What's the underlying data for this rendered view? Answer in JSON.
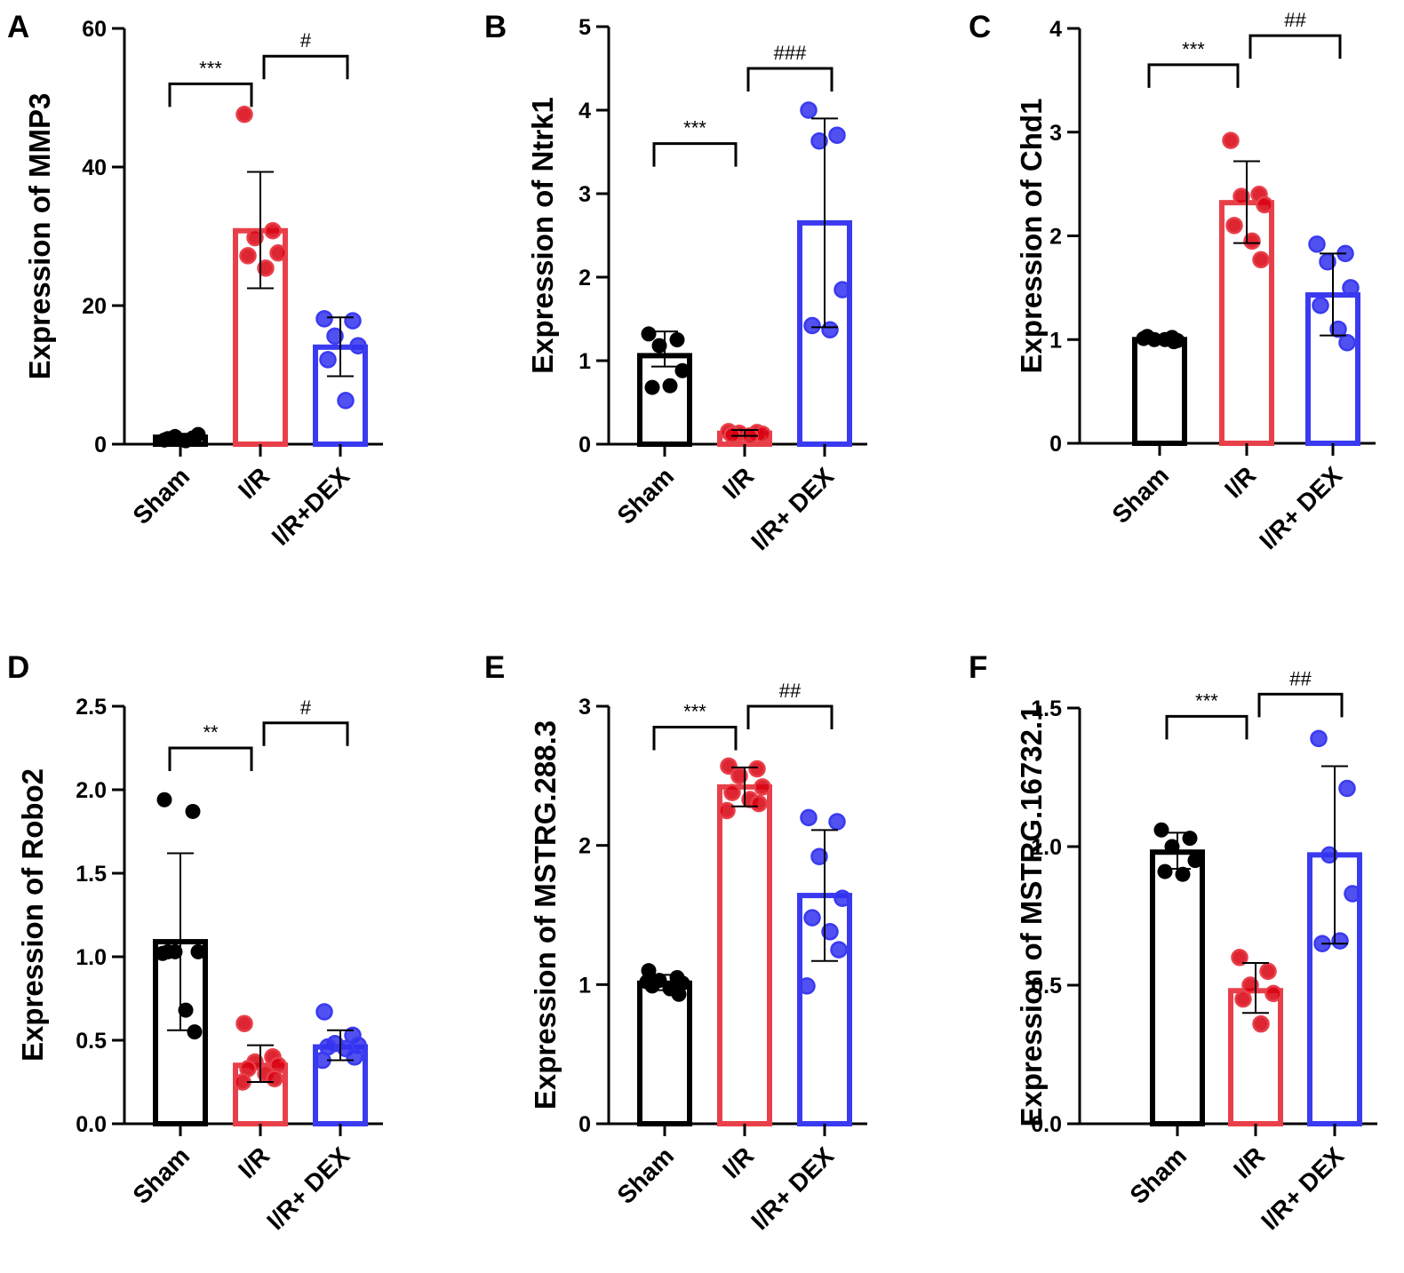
{
  "chart_data": [
    {
      "panel": "A",
      "type": "bar",
      "categories": [
        "Sham",
        "I/R",
        "I/R+DEX"
      ],
      "ylabel": "Expression of MMP3",
      "ylim": [
        0,
        60
      ],
      "yticks": [
        0,
        20,
        40,
        60
      ],
      "ytick_labels": [
        "0",
        "20",
        "40",
        "60"
      ],
      "colors": [
        "#000000",
        "#e8404a",
        "#3a3af0"
      ],
      "point_colors": [
        "#000000",
        "#d8000f",
        "#3333ee"
      ],
      "series": [
        {
          "name": "Sham",
          "mean": 1.0,
          "sd_low": 0.5,
          "sd_high": 1.5,
          "points": [
            0.6,
            0.9,
            1.1,
            1.4,
            0.8,
            0.5
          ]
        },
        {
          "name": "I/R",
          "mean": 30.8,
          "sd_low": 22.5,
          "sd_high": 39.3,
          "points": [
            47.6,
            30.8,
            29.8,
            27.6,
            27.2,
            25.4
          ]
        },
        {
          "name": "I/R+DEX",
          "mean": 14.0,
          "sd_low": 9.8,
          "sd_high": 18.3,
          "points": [
            18.1,
            17.8,
            15.6,
            14.2,
            12.2,
            6.3
          ]
        }
      ],
      "annotations": [
        {
          "text": "***",
          "from": 0,
          "to": 1,
          "y": 52
        },
        {
          "text": "#",
          "from": 1,
          "to": 2,
          "y": 56
        }
      ]
    },
    {
      "panel": "B",
      "type": "bar",
      "categories": [
        "Sham",
        "I/R",
        "I/R+ DEX"
      ],
      "ylabel": "Expression of Ntrk1",
      "ylim": [
        0,
        5
      ],
      "yticks": [
        0,
        1,
        2,
        3,
        4,
        5
      ],
      "ytick_labels": [
        "0",
        "1",
        "2",
        "3",
        "4",
        "5"
      ],
      "colors": [
        "#000000",
        "#e8404a",
        "#3a3af0"
      ],
      "point_colors": [
        "#000000",
        "#d8000f",
        "#3333ee"
      ],
      "series": [
        {
          "name": "Sham",
          "mean": 1.06,
          "sd_low": 0.93,
          "sd_high": 1.35,
          "points": [
            1.32,
            1.25,
            1.18,
            0.88,
            0.68,
            0.7
          ]
        },
        {
          "name": "I/R",
          "mean": 0.13,
          "sd_low": 0.1,
          "sd_high": 0.17,
          "points": [
            0.15,
            0.14,
            0.13,
            0.12,
            0.11,
            0.1
          ]
        },
        {
          "name": "I/R+ DEX",
          "mean": 2.65,
          "sd_low": 1.4,
          "sd_high": 3.9,
          "points": [
            4.0,
            3.7,
            3.63,
            1.85,
            1.42,
            1.37
          ]
        }
      ],
      "annotations": [
        {
          "text": "***",
          "from": 0,
          "to": 1,
          "y": 3.6
        },
        {
          "text": "###",
          "from": 1,
          "to": 2,
          "y": 4.5
        }
      ]
    },
    {
      "panel": "C",
      "type": "bar",
      "categories": [
        "Sham",
        "I/R",
        "I/R+ DEX"
      ],
      "ylabel": "Expression of Chd1",
      "ylim": [
        0,
        4
      ],
      "yticks": [
        0,
        1,
        2,
        3,
        4
      ],
      "ytick_labels": [
        "0",
        "1",
        "2",
        "3",
        "4"
      ],
      "colors": [
        "#000000",
        "#e8404a",
        "#3a3af0"
      ],
      "point_colors": [
        "#000000",
        "#d8000f",
        "#3333ee"
      ],
      "series": [
        {
          "name": "Sham",
          "mean": 1.0,
          "sd_low": 0.97,
          "sd_high": 1.03,
          "points": [
            1.01,
            1.02,
            1.0,
            0.99,
            1.03,
            1.0,
            0.98
          ]
        },
        {
          "name": "I/R",
          "mean": 2.32,
          "sd_low": 1.93,
          "sd_high": 2.72,
          "points": [
            2.92,
            2.4,
            2.38,
            2.3,
            2.1,
            1.95,
            1.77
          ]
        },
        {
          "name": "I/R+ DEX",
          "mean": 1.43,
          "sd_low": 1.04,
          "sd_high": 1.83,
          "points": [
            1.92,
            1.83,
            1.75,
            1.5,
            1.33,
            1.1,
            0.97
          ]
        }
      ],
      "annotations": [
        {
          "text": "***",
          "from": 0,
          "to": 1,
          "y": 3.65
        },
        {
          "text": "##",
          "from": 1,
          "to": 2,
          "y": 3.93
        }
      ]
    },
    {
      "panel": "D",
      "type": "bar",
      "categories": [
        "Sham",
        "I/R",
        "I/R+ DEX"
      ],
      "ylabel": "Expression of Robo2",
      "ylim": [
        0,
        2.5
      ],
      "yticks": [
        0,
        0.5,
        1.0,
        1.5,
        2.0,
        2.5
      ],
      "ytick_labels": [
        "0.0",
        "0.5",
        "1.0",
        "1.5",
        "2.0",
        "2.5"
      ],
      "colors": [
        "#000000",
        "#e8404a",
        "#3a3af0"
      ],
      "point_colors": [
        "#000000",
        "#d8000f",
        "#3333ee"
      ],
      "series": [
        {
          "name": "Sham",
          "mean": 1.09,
          "sd_low": 0.56,
          "sd_high": 1.62,
          "points": [
            1.94,
            1.87,
            1.03,
            1.03,
            1.03,
            0.68,
            0.55,
            1.02
          ]
        },
        {
          "name": "I/R",
          "mean": 0.35,
          "sd_low": 0.25,
          "sd_high": 0.47,
          "points": [
            0.6,
            0.4,
            0.37,
            0.35,
            0.33,
            0.3,
            0.27,
            0.25
          ]
        },
        {
          "name": "I/R+ DEX",
          "mean": 0.46,
          "sd_low": 0.38,
          "sd_high": 0.56,
          "points": [
            0.67,
            0.53,
            0.48,
            0.47,
            0.46,
            0.45,
            0.4,
            0.38
          ]
        }
      ],
      "annotations": [
        {
          "text": "**",
          "from": 0,
          "to": 1,
          "y": 2.25
        },
        {
          "text": "#",
          "from": 1,
          "to": 2,
          "y": 2.4
        }
      ]
    },
    {
      "panel": "E",
      "type": "bar",
      "categories": [
        "Sham",
        "I/R",
        "I/R+ DEX"
      ],
      "ylabel": "Expression of MSTRG.288.3",
      "ylim": [
        0,
        3
      ],
      "yticks": [
        0,
        1,
        2,
        3
      ],
      "ytick_labels": [
        "0",
        "1",
        "2",
        "3"
      ],
      "colors": [
        "#000000",
        "#e8404a",
        "#3a3af0"
      ],
      "point_colors": [
        "#000000",
        "#d8000f",
        "#3333ee"
      ],
      "series": [
        {
          "name": "Sham",
          "mean": 1.01,
          "sd_low": 0.96,
          "sd_high": 1.07,
          "points": [
            1.1,
            1.05,
            1.03,
            1.01,
            0.99,
            0.97,
            0.93,
            1.02
          ]
        },
        {
          "name": "I/R",
          "mean": 2.42,
          "sd_low": 2.28,
          "sd_high": 2.56,
          "points": [
            2.57,
            2.55,
            2.5,
            2.42,
            2.38,
            2.33,
            2.3,
            2.25
          ]
        },
        {
          "name": "I/R+ DEX",
          "mean": 1.64,
          "sd_low": 1.17,
          "sd_high": 2.11,
          "points": [
            2.2,
            2.17,
            1.92,
            1.62,
            1.48,
            1.38,
            1.25,
            0.99
          ]
        }
      ],
      "annotations": [
        {
          "text": "***",
          "from": 0,
          "to": 1,
          "y": 2.85
        },
        {
          "text": "##",
          "from": 1,
          "to": 2,
          "y": 3.0
        }
      ]
    },
    {
      "panel": "F",
      "type": "bar",
      "categories": [
        "Sham",
        "I/R",
        "I/R+ DEX"
      ],
      "ylabel": "Expression of MSTRG.16732.1",
      "ylim": [
        0,
        1.5
      ],
      "yticks": [
        0,
        0.5,
        1.0,
        1.5
      ],
      "ytick_labels": [
        "0.0",
        "0.5",
        "1.0",
        "1.5"
      ],
      "colors": [
        "#000000",
        "#e8404a",
        "#3a3af0"
      ],
      "point_colors": [
        "#000000",
        "#d8000f",
        "#3333ee"
      ],
      "series": [
        {
          "name": "Sham",
          "mean": 0.98,
          "sd_low": 0.92,
          "sd_high": 1.05,
          "points": [
            1.06,
            1.03,
            1.0,
            0.95,
            0.91,
            0.9
          ]
        },
        {
          "name": "I/R",
          "mean": 0.48,
          "sd_low": 0.4,
          "sd_high": 0.58,
          "points": [
            0.6,
            0.55,
            0.5,
            0.47,
            0.45,
            0.36
          ]
        },
        {
          "name": "I/R+ DEX",
          "mean": 0.97,
          "sd_low": 0.65,
          "sd_high": 1.29,
          "points": [
            1.39,
            1.21,
            0.97,
            0.83,
            0.65,
            0.66
          ]
        }
      ],
      "annotations": [
        {
          "text": "***",
          "from": 0,
          "to": 1,
          "y": 1.47
        },
        {
          "text": "##",
          "from": 1,
          "to": 2,
          "y": 1.55
        }
      ]
    }
  ]
}
